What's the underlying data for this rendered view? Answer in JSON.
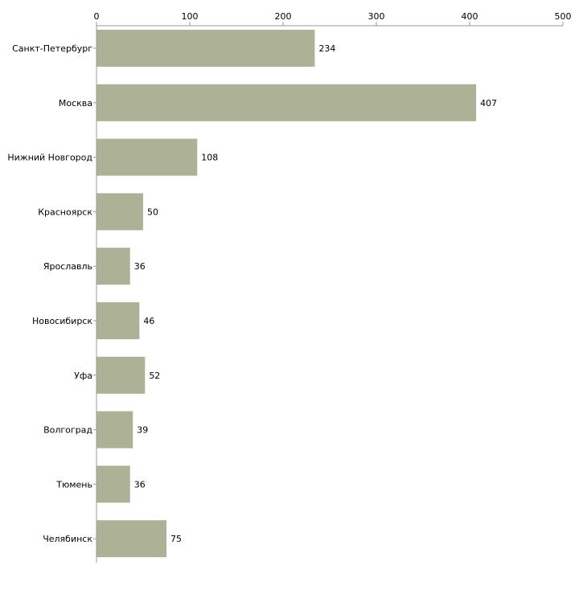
{
  "chart_data": {
    "type": "bar",
    "orientation": "horizontal",
    "title": "",
    "xlabel": "",
    "ylabel": "",
    "xlim": [
      0,
      500
    ],
    "ticks": [
      0,
      100,
      200,
      300,
      400,
      500
    ],
    "tick_labels": [
      "0",
      "100",
      "200",
      "300",
      "400",
      "500"
    ],
    "categories": [
      "Санкт-Петербург",
      "Москва",
      "Нижний Новгород",
      "Красноярск",
      "Ярославль",
      "Новосибирск",
      "Уфа",
      "Волгоград",
      "Тюмень",
      "Челябинск"
    ],
    "values": [
      234,
      407,
      108,
      50,
      36,
      46,
      52,
      39,
      36,
      75
    ],
    "value_labels": [
      "234",
      "407",
      "108",
      "50",
      "36",
      "46",
      "52",
      "39",
      "36",
      "75"
    ],
    "axis_position": "top",
    "grid": false,
    "legend": "none",
    "colors": {
      "bar": "#adb196",
      "axis": "#999999",
      "text": "#000000"
    }
  }
}
